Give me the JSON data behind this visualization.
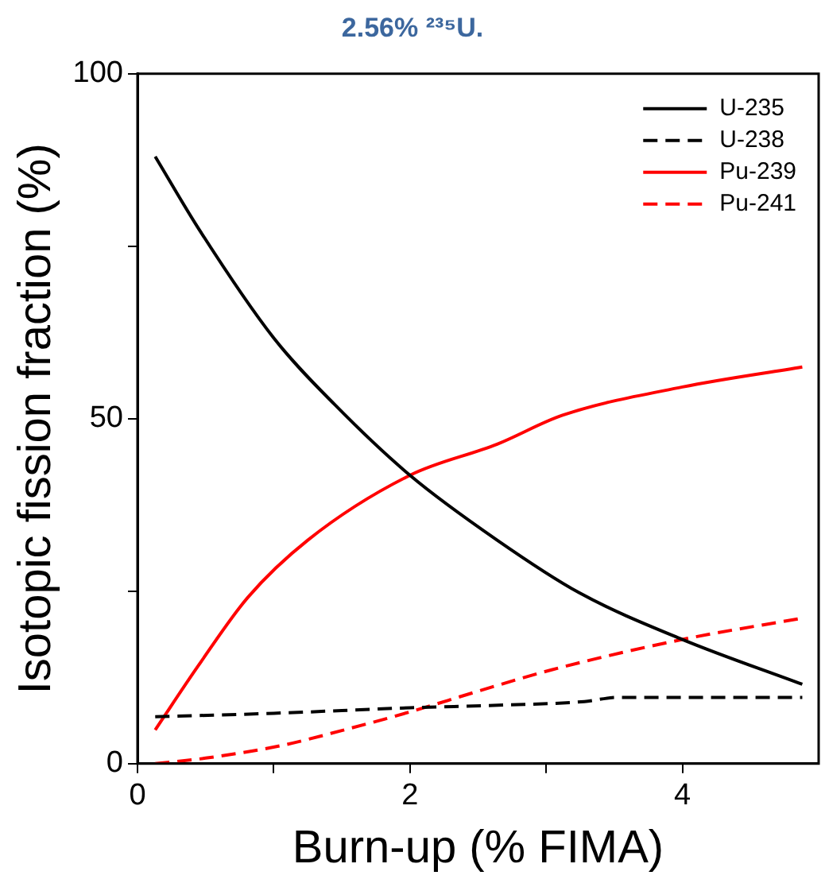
{
  "chart_data": {
    "type": "line",
    "title": "2.56% ²³⁵U.",
    "xlabel": "Burn-up (% FIMA)",
    "ylabel": "Isotopic fission fraction (%)",
    "xlim": [
      0,
      5
    ],
    "xticks": [
      0,
      {
        "value": 1,
        "label": null
      },
      2,
      {
        "value": 3,
        "label": null
      },
      4
    ],
    "ylim": [
      0,
      100
    ],
    "yticks": [
      0,
      {
        "value": 25,
        "label": null
      },
      50,
      {
        "value": 75,
        "label": null
      },
      100
    ],
    "grid": false,
    "legend": "top right",
    "marker": "none",
    "series": [
      {
        "name": "U-235",
        "color": "#000000",
        "line_style": "solid",
        "x": [
          0.13,
          0.45,
          1.0,
          1.45,
          2.0,
          2.64,
          3.24,
          4.0,
          4.88
        ],
        "values": [
          88,
          77.5,
          61.7,
          52,
          41.8,
          32.4,
          24.8,
          18,
          11.5
        ]
      },
      {
        "name": "U-238",
        "color": "#000000",
        "line_style": "dashed",
        "x": [
          0.13,
          1.0,
          2.0,
          2.7,
          3.28,
          3.52,
          4.0,
          4.88
        ],
        "values": [
          6.8,
          7.3,
          8.1,
          8.5,
          9.0,
          9.6,
          9.6,
          9.6
        ]
      },
      {
        "name": "Pu-239",
        "color": "#ff0000",
        "line_style": "solid",
        "x": [
          0.13,
          0.45,
          0.81,
          1.25,
          2.0,
          2.64,
          3.12,
          4.0,
          4.88
        ],
        "values": [
          4.9,
          14.3,
          24.1,
          32.4,
          41.8,
          46.3,
          50.5,
          54.6,
          57.5
        ]
      },
      {
        "name": "Pu-241",
        "color": "#ff0000",
        "line_style": "dashed",
        "x": [
          0.13,
          0.5,
          1.05,
          1.5,
          2.0,
          2.5,
          3.04,
          4.0,
          4.88
        ],
        "values": [
          0,
          0.8,
          2.6,
          4.8,
          7.5,
          10.5,
          13.6,
          18,
          21.1
        ]
      }
    ]
  }
}
